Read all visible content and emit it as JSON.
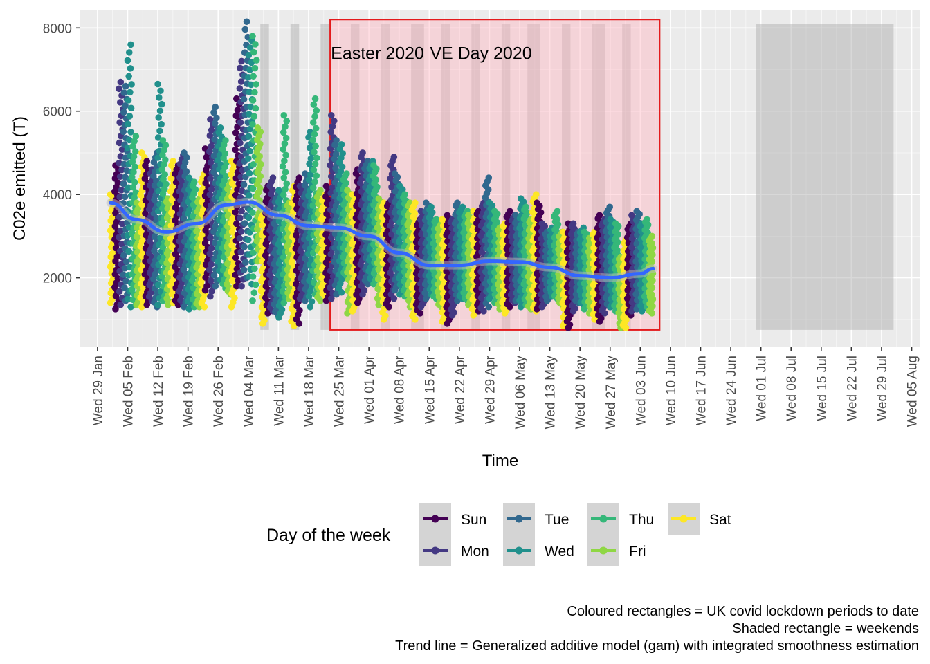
{
  "chart_data": {
    "type": "scatter",
    "xlabel": "Time",
    "ylabel": "C02e emitted (T)",
    "xlim": [
      "2020-01-25",
      "2020-08-07"
    ],
    "ylim": [
      350,
      8420
    ],
    "y_ticks": [
      2000,
      4000,
      6000,
      8000
    ],
    "x_ticks": [
      "2020-01-29",
      "2020-02-05",
      "2020-02-12",
      "2020-02-19",
      "2020-02-26",
      "2020-03-04",
      "2020-03-11",
      "2020-03-18",
      "2020-03-25",
      "2020-04-01",
      "2020-04-08",
      "2020-04-15",
      "2020-04-22",
      "2020-04-29",
      "2020-05-06",
      "2020-05-13",
      "2020-05-20",
      "2020-05-27",
      "2020-06-03",
      "2020-06-10",
      "2020-06-17",
      "2020-06-24",
      "2020-07-01",
      "2020-07-08",
      "2020-07-15",
      "2020-07-22",
      "2020-07-29",
      "2020-08-05"
    ],
    "x_tick_labels": [
      "Wed 29 Jan",
      "Wed 05 Feb",
      "Wed 12 Feb",
      "Wed 19 Feb",
      "Wed 26 Feb",
      "Wed 04 Mar",
      "Wed 11 Mar",
      "Wed 18 Mar",
      "Wed 25 Mar",
      "Wed 01 Apr",
      "Wed 08 Apr",
      "Wed 15 Apr",
      "Wed 22 Apr",
      "Wed 29 Apr",
      "Wed 06 May",
      "Wed 13 May",
      "Wed 20 May",
      "Wed 27 May",
      "Wed 03 Jun",
      "Wed 10 Jun",
      "Wed 17 Jun",
      "Wed 24 Jun",
      "Wed 01 Jul",
      "Wed 08 Jul",
      "Wed 15 Jul",
      "Wed 22 Jul",
      "Wed 29 Jul",
      "Wed 05 Aug"
    ],
    "grid": true,
    "data_start": "2020-02-01",
    "data_days": 126,
    "day_range": [
      [
        1400,
        4000
      ],
      [
        1250,
        4700
      ],
      [
        1350,
        6700
      ],
      [
        1450,
        6600
      ],
      [
        1300,
        7600
      ],
      [
        1350,
        5400
      ],
      [
        1350,
        3800
      ],
      [
        1300,
        5000
      ],
      [
        1350,
        4800
      ],
      [
        1450,
        4600
      ],
      [
        1300,
        5000
      ],
      [
        1350,
        6650
      ],
      [
        1450,
        5300
      ],
      [
        1350,
        3900
      ],
      [
        1400,
        4800
      ],
      [
        1350,
        4700
      ],
      [
        1350,
        4950
      ],
      [
        1300,
        5000
      ],
      [
        1250,
        4400
      ],
      [
        1300,
        4300
      ],
      [
        1300,
        3900
      ],
      [
        1300,
        4500
      ],
      [
        1700,
        5100
      ],
      [
        1550,
        5800
      ],
      [
        1800,
        6100
      ],
      [
        1950,
        5600
      ],
      [
        1750,
        5300
      ],
      [
        1600,
        4300
      ],
      [
        1300,
        4800
      ],
      [
        1800,
        6300
      ],
      [
        1800,
        7200
      ],
      [
        2000,
        8150
      ],
      [
        1850,
        7700
      ],
      [
        1450,
        7800
      ],
      [
        2400,
        5600
      ],
      [
        900,
        3500
      ],
      [
        1150,
        4200
      ],
      [
        1200,
        4400
      ],
      [
        1100,
        4000
      ],
      [
        1050,
        4100
      ],
      [
        1400,
        5900
      ],
      [
        1500,
        3800
      ],
      [
        850,
        4200
      ],
      [
        900,
        4400
      ],
      [
        1500,
        4200
      ],
      [
        1450,
        4500
      ],
      [
        1300,
        5500
      ],
      [
        1600,
        6300
      ],
      [
        1450,
        4100
      ],
      [
        1550,
        4000
      ],
      [
        1450,
        4200
      ],
      [
        1500,
        5900
      ],
      [
        1600,
        5300
      ],
      [
        1650,
        5200
      ],
      [
        2050,
        4500
      ],
      [
        1150,
        4100
      ],
      [
        1200,
        4000
      ],
      [
        1400,
        4600
      ],
      [
        1600,
        5000
      ],
      [
        1850,
        4800
      ],
      [
        1900,
        4800
      ],
      [
        1850,
        4700
      ],
      [
        1350,
        3900
      ],
      [
        1000,
        3800
      ],
      [
        1300,
        3800
      ],
      [
        1500,
        4900
      ],
      [
        1700,
        4500
      ],
      [
        1600,
        4200
      ],
      [
        1550,
        4000
      ],
      [
        1300,
        3800
      ],
      [
        1000,
        3800
      ],
      [
        1150,
        3400
      ],
      [
        1300,
        3600
      ],
      [
        1500,
        3800
      ],
      [
        1600,
        3700
      ],
      [
        1500,
        3400
      ],
      [
        1300,
        3300
      ],
      [
        950,
        3400
      ],
      [
        900,
        3500
      ],
      [
        1100,
        3400
      ],
      [
        1450,
        3800
      ],
      [
        1500,
        3700
      ],
      [
        1450,
        3600
      ],
      [
        1350,
        3500
      ],
      [
        1100,
        3600
      ],
      [
        1200,
        3600
      ],
      [
        1200,
        3800
      ],
      [
        1300,
        4400
      ],
      [
        1500,
        3800
      ],
      [
        1400,
        3600
      ],
      [
        1250,
        3200
      ],
      [
        1150,
        3300
      ],
      [
        1300,
        3600
      ],
      [
        1400,
        3500
      ],
      [
        1450,
        3500
      ],
      [
        1300,
        3900
      ],
      [
        1350,
        3700
      ],
      [
        1250,
        3400
      ],
      [
        1200,
        4000
      ],
      [
        1250,
        3800
      ],
      [
        1300,
        3300
      ],
      [
        1450,
        3100
      ],
      [
        1550,
        3200
      ],
      [
        1500,
        3600
      ],
      [
        1350,
        3100
      ],
      [
        850,
        3100
      ],
      [
        800,
        3300
      ],
      [
        1200,
        3300
      ],
      [
        1400,
        3100
      ],
      [
        1350,
        3200
      ],
      [
        1250,
        3100
      ],
      [
        1150,
        2950
      ],
      [
        1000,
        3100
      ],
      [
        950,
        3500
      ],
      [
        1150,
        3400
      ],
      [
        1300,
        3700
      ],
      [
        1300,
        3400
      ],
      [
        1200,
        3300
      ],
      [
        800,
        2500
      ],
      [
        800,
        2900
      ],
      [
        1100,
        3300
      ],
      [
        1200,
        3500
      ],
      [
        1250,
        3600
      ],
      [
        1200,
        3300
      ],
      [
        1300,
        3400
      ],
      [
        1150,
        3000
      ]
    ],
    "series": [
      {
        "name": "Sun",
        "color": "#440154"
      },
      {
        "name": "Mon",
        "color": "#443983"
      },
      {
        "name": "Tue",
        "color": "#31688E"
      },
      {
        "name": "Wed",
        "color": "#21908C"
      },
      {
        "name": "Thu",
        "color": "#35B779"
      },
      {
        "name": "Fri",
        "color": "#8FD744"
      },
      {
        "name": "Sat",
        "color": "#FDE725"
      }
    ],
    "trend": {
      "color": "#3366FF",
      "points": [
        [
          "2020-02-01",
          3800
        ],
        [
          "2020-02-07",
          3400
        ],
        [
          "2020-02-14",
          3100
        ],
        [
          "2020-02-21",
          3300
        ],
        [
          "2020-02-28",
          3750
        ],
        [
          "2020-03-04",
          3820
        ],
        [
          "2020-03-11",
          3500
        ],
        [
          "2020-03-18",
          3250
        ],
        [
          "2020-03-25",
          3200
        ],
        [
          "2020-04-01",
          3000
        ],
        [
          "2020-04-08",
          2600
        ],
        [
          "2020-04-15",
          2300
        ],
        [
          "2020-04-22",
          2300
        ],
        [
          "2020-04-29",
          2400
        ],
        [
          "2020-05-06",
          2380
        ],
        [
          "2020-05-13",
          2250
        ],
        [
          "2020-05-20",
          2050
        ],
        [
          "2020-05-27",
          2000
        ],
        [
          "2020-06-03",
          2100
        ],
        [
          "2020-06-06",
          2220
        ]
      ]
    },
    "lockdown": {
      "start": "2020-03-23",
      "end": "2020-06-07",
      "ymin": 750,
      "ymax": 8200,
      "color": "#e41a1c"
    },
    "weekend_periods": [
      [
        "2020-03-07",
        "2020-03-08"
      ],
      [
        "2020-03-14",
        "2020-03-15"
      ],
      [
        "2020-03-21",
        "2020-03-22"
      ],
      [
        "2020-03-28",
        "2020-03-29"
      ],
      [
        "2020-04-04",
        "2020-04-05"
      ],
      [
        "2020-04-11",
        "2020-04-13"
      ],
      [
        "2020-04-18",
        "2020-04-19"
      ],
      [
        "2020-04-25",
        "2020-04-26"
      ],
      [
        "2020-05-02",
        "2020-05-03"
      ],
      [
        "2020-05-08",
        "2020-05-10"
      ],
      [
        "2020-05-16",
        "2020-05-17"
      ],
      [
        "2020-05-23",
        "2020-05-25"
      ],
      [
        "2020-05-30",
        "2020-05-31"
      ],
      [
        "2020-06-30",
        "2020-07-31"
      ]
    ],
    "weekend_yrange": [
      750,
      8100
    ],
    "annotations": [
      {
        "text": "Easter 2020",
        "x": "2020-04-03",
        "y": 7250
      },
      {
        "text": "VE Day 2020",
        "x": "2020-04-27",
        "y": 7250
      }
    ],
    "legend": {
      "title": "Day of the week",
      "position": "bottom",
      "items": [
        "Sun",
        "Mon",
        "Tue",
        "Wed",
        "Thu",
        "Fri",
        "Sat"
      ]
    }
  },
  "caption": {
    "line1": "Coloured rectangles = UK covid lockdown periods to date",
    "line2": "Shaded rectangle = weekends",
    "line3": "Trend line = Generalized additive model (gam) with integrated smoothness estimation"
  }
}
